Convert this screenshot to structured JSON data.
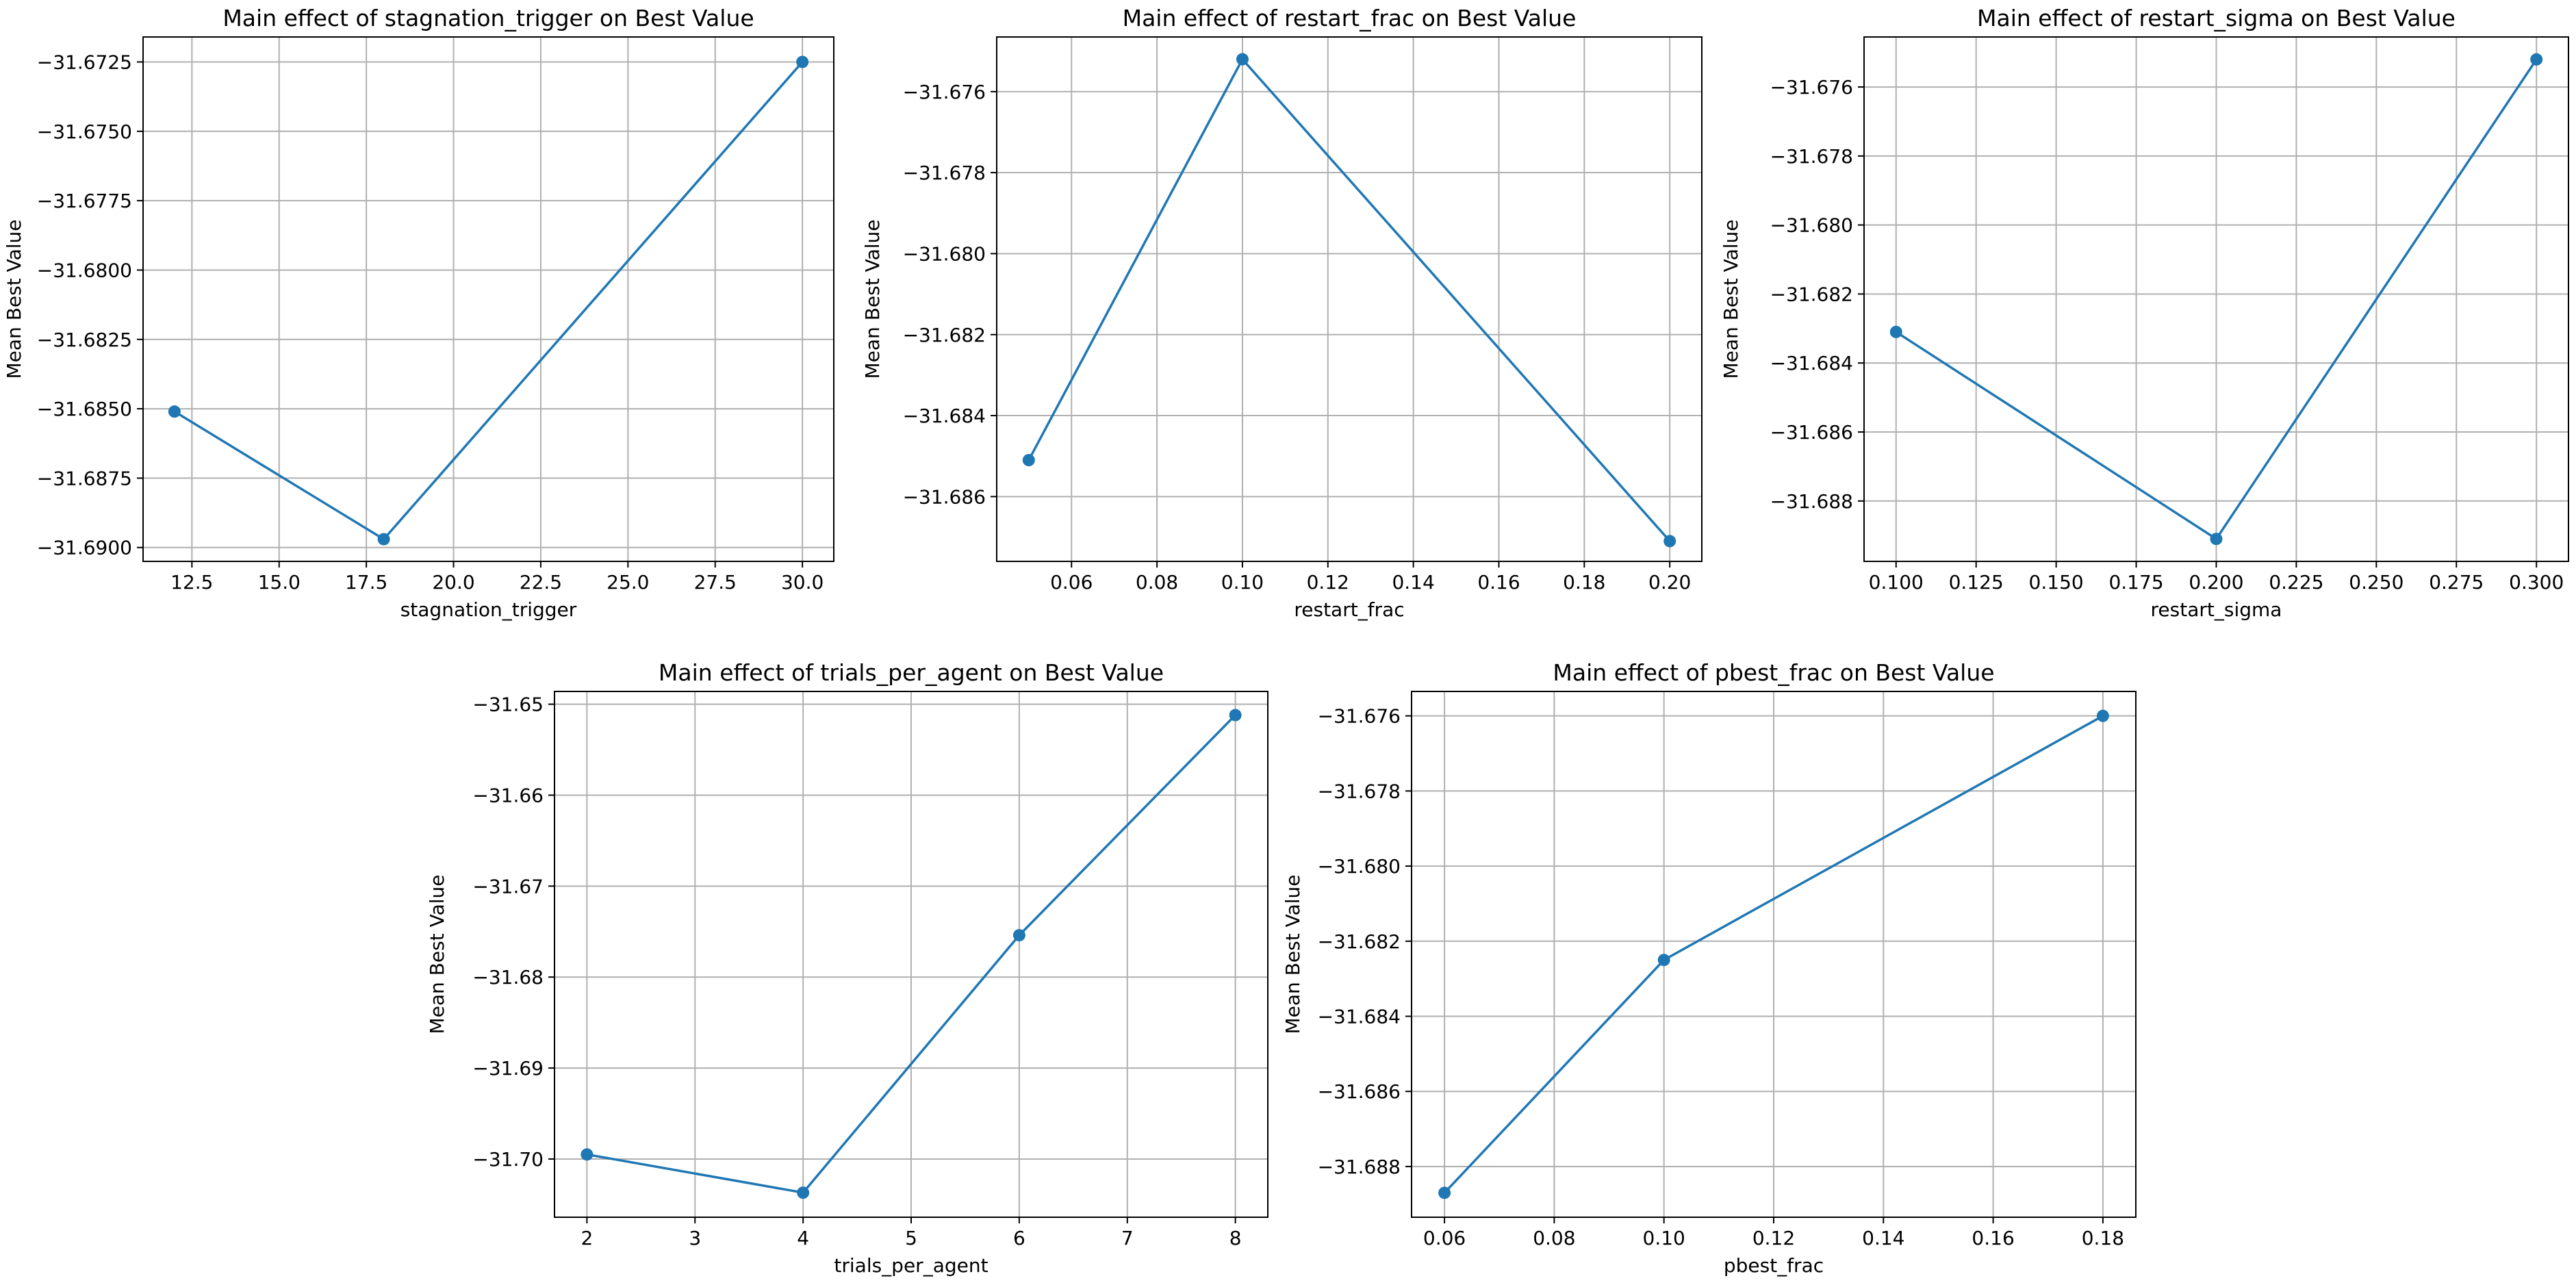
{
  "chart_data": [
    {
      "type": "line",
      "title": "Main effect of stagnation_trigger on Best Value",
      "xlabel": "stagnation_trigger",
      "ylabel": "Mean Best Value",
      "x": [
        12,
        18,
        30
      ],
      "y": [
        -31.6851,
        -31.6897,
        -31.6725
      ],
      "xlim": [
        11.1,
        30.9
      ],
      "ylim": [
        -31.6905,
        -31.6716
      ],
      "xticks": [
        12.5,
        15.0,
        17.5,
        20.0,
        22.5,
        25.0,
        27.5,
        30.0
      ],
      "xtick_labels": [
        "12.5",
        "15.0",
        "17.5",
        "20.0",
        "22.5",
        "25.0",
        "27.5",
        "30.0"
      ],
      "yticks": [
        -31.69,
        -31.6875,
        -31.685,
        -31.6825,
        -31.68,
        -31.6775,
        -31.675,
        -31.6725
      ],
      "ytick_labels": [
        "−31.6900",
        "−31.6875",
        "−31.6850",
        "−31.6825",
        "−31.6800",
        "−31.6775",
        "−31.6750",
        "−31.6725"
      ],
      "grid": true,
      "color": "#1f77b4"
    },
    {
      "type": "line",
      "title": "Main effect of restart_frac on Best Value",
      "xlabel": "restart_frac",
      "ylabel": "Mean Best Value",
      "x": [
        0.05,
        0.1,
        0.2
      ],
      "y": [
        -31.6851,
        -31.6752,
        -31.6871
      ],
      "xlim": [
        0.0425,
        0.2075
      ],
      "ylim": [
        -31.6876,
        -31.67465
      ],
      "xticks": [
        0.06,
        0.08,
        0.1,
        0.12,
        0.14,
        0.16,
        0.18,
        0.2
      ],
      "xtick_labels": [
        "0.06",
        "0.08",
        "0.10",
        "0.12",
        "0.14",
        "0.16",
        "0.18",
        "0.20"
      ],
      "yticks": [
        -31.686,
        -31.684,
        -31.682,
        -31.68,
        -31.678,
        -31.676
      ],
      "ytick_labels": [
        "−31.686",
        "−31.684",
        "−31.682",
        "−31.680",
        "−31.678",
        "−31.676"
      ],
      "grid": true,
      "color": "#1f77b4"
    },
    {
      "type": "line",
      "title": "Main effect of restart_sigma on Best Value",
      "xlabel": "restart_sigma",
      "ylabel": "Mean Best Value",
      "x": [
        0.1,
        0.2,
        0.3
      ],
      "y": [
        -31.6831,
        -31.6891,
        -31.6752
      ],
      "xlim": [
        0.09,
        0.31
      ],
      "ylim": [
        -31.68975,
        -31.67455
      ],
      "xticks": [
        0.1,
        0.125,
        0.15,
        0.175,
        0.2,
        0.225,
        0.25,
        0.275,
        0.3
      ],
      "xtick_labels": [
        "0.100",
        "0.125",
        "0.150",
        "0.175",
        "0.200",
        "0.225",
        "0.250",
        "0.275",
        "0.300"
      ],
      "yticks": [
        -31.688,
        -31.686,
        -31.684,
        -31.682,
        -31.68,
        -31.678,
        -31.676
      ],
      "ytick_labels": [
        "−31.688",
        "−31.686",
        "−31.684",
        "−31.682",
        "−31.680",
        "−31.678",
        "−31.676"
      ],
      "grid": true,
      "color": "#1f77b4"
    },
    {
      "type": "line",
      "title": "Main effect of trials_per_agent on Best Value",
      "xlabel": "trials_per_agent",
      "ylabel": "Mean Best Value",
      "x": [
        2,
        4,
        6,
        8
      ],
      "y": [
        -31.6995,
        -31.7037,
        -31.6754,
        -31.6512
      ],
      "xlim": [
        1.7,
        8.3
      ],
      "ylim": [
        -31.7064,
        -31.6486
      ],
      "xticks": [
        2,
        3,
        4,
        5,
        6,
        7,
        8
      ],
      "xtick_labels": [
        "2",
        "3",
        "4",
        "5",
        "6",
        "7",
        "8"
      ],
      "yticks": [
        -31.7,
        -31.69,
        -31.68,
        -31.67,
        -31.66,
        -31.65
      ],
      "ytick_labels": [
        "−31.70",
        "−31.69",
        "−31.68",
        "−31.67",
        "−31.66",
        "−31.65"
      ],
      "grid": true,
      "color": "#1f77b4"
    },
    {
      "type": "line",
      "title": "Main effect of pbest_frac on Best Value",
      "xlabel": "pbest_frac",
      "ylabel": "Mean Best Value",
      "x": [
        0.06,
        0.1,
        0.18
      ],
      "y": [
        -31.6887,
        -31.6825,
        -31.676
      ],
      "xlim": [
        0.054,
        0.186
      ],
      "ylim": [
        -31.68935,
        -31.67535
      ],
      "xticks": [
        0.06,
        0.08,
        0.1,
        0.12,
        0.14,
        0.16,
        0.18
      ],
      "xtick_labels": [
        "0.06",
        "0.08",
        "0.10",
        "0.12",
        "0.14",
        "0.16",
        "0.18"
      ],
      "yticks": [
        -31.688,
        -31.686,
        -31.684,
        -31.682,
        -31.68,
        -31.678,
        -31.676
      ],
      "ytick_labels": [
        "−31.688",
        "−31.686",
        "−31.684",
        "−31.682",
        "−31.680",
        "−31.678",
        "−31.676"
      ],
      "grid": true,
      "color": "#1f77b4"
    }
  ]
}
